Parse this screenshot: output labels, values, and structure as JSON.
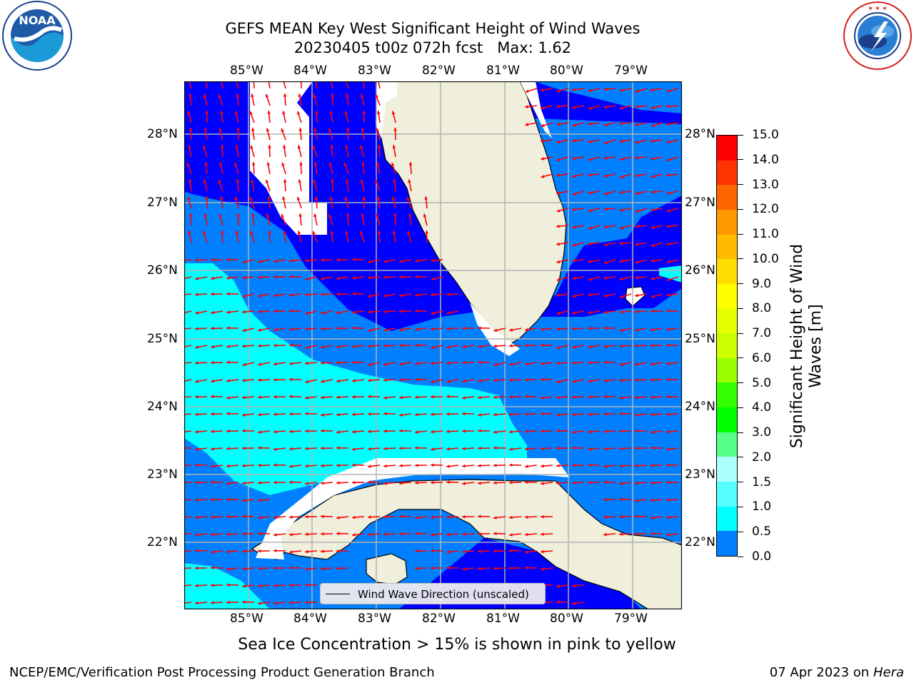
{
  "title": {
    "line1": "GEFS MEAN Key West Significant Height of Wind Waves",
    "line2": "20230405 t00z 072h fcst   Max: 1.62"
  },
  "logos": {
    "left": "NOAA",
    "left_ring": "NATIONAL OCEANIC AND ATMOSPHERIC ADMINISTRATION · U.S. DEPARTMENT OF COMMERCE",
    "right_ring": "NATIONAL WEATHER SERVICE"
  },
  "map": {
    "lon_labels": [
      "85°W",
      "84°W",
      "83°W",
      "82°W",
      "81°W",
      "80°W",
      "79°W"
    ],
    "lat_labels": [
      "28°N",
      "27°N",
      "26°N",
      "25°N",
      "24°N",
      "23°N",
      "22°N"
    ],
    "legend_label": "Wind Wave Direction (unscaled)",
    "ocean_color": "#0000ff",
    "land_color": "#efefdc",
    "arrow_color": "#ff0000"
  },
  "colorbar": {
    "label_line1": "Significant Height of Wind",
    "label_line2": "Waves [m]",
    "ticks": [
      "15.0",
      "14.0",
      "13.0",
      "12.0",
      "11.0",
      "10.0",
      "9.0",
      "8.0",
      "7.0",
      "6.0",
      "5.0",
      "4.0",
      "3.0",
      "2.0",
      "1.5",
      "1.0",
      "0.5",
      "0.0"
    ],
    "colors": [
      "#ff0000",
      "#ff3300",
      "#ff6600",
      "#ff9900",
      "#ffbb00",
      "#ffdd00",
      "#ffff00",
      "#e6ff00",
      "#ccff00",
      "#99ff00",
      "#33ff00",
      "#00ff00",
      "#55ff88",
      "#aaffff",
      "#55ffff",
      "#00ffff",
      "#0080ff",
      "#0000ff"
    ]
  },
  "caption": "Sea Ice Concentration > 15% is shown in pink to yellow",
  "footer": {
    "left": "NCEP/EMC/Verification Post Processing Product Generation Branch",
    "right_date": "07 Apr 2023 on ",
    "right_host": "Hera"
  }
}
